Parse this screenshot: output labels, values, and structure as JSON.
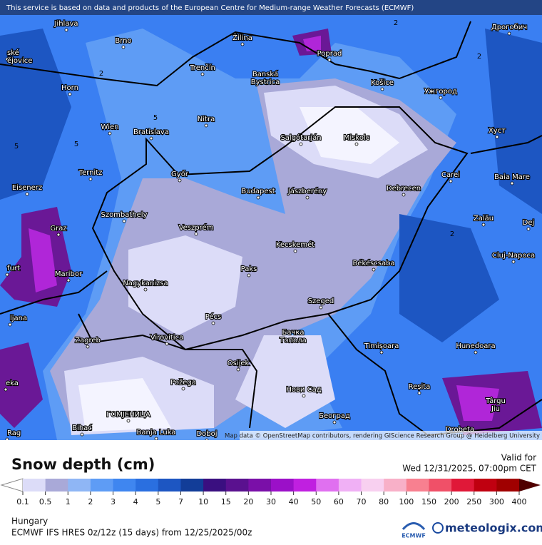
{
  "header": {
    "attribution": "This service is based on data and products of the European Centre for Medium-range Weather Forecasts (ECMWF)"
  },
  "map": {
    "credit": "Map data © OpenStreetMap contributors, rendering GIScience Research Group @ Heidelberg University",
    "places": [
      "Jihlava",
      "Brno",
      "Žilina",
      "Poprad",
      "Дрогобич",
      "Trenčín",
      "Banská\nBystrica",
      "Košice",
      "Ужгород",
      "Horn",
      "Nitra",
      "Хуст",
      "Wien",
      "Bratislava",
      "Salgótarján",
      "Miskolc",
      "Baia Mare",
      "Ternitz",
      "Győr",
      "Carei",
      "Eisenerz",
      "Budapest",
      "Jászberény",
      "Debrecen",
      "Zalău",
      "Szombathely",
      "Veszprém",
      "Dej",
      "Graz",
      "Cluj-Napoca",
      "Kecskemét",
      "Békéscsaba",
      "Paks",
      "Maribor",
      "Nagykanizsa",
      "Szeged",
      "Pécs",
      "Zagreb",
      "Virovitica",
      "Бачка\nТопола",
      "Timișoara",
      "Hunedoara",
      "Osijek",
      "Požega",
      "Reșita",
      "Нови Сад",
      "Târgu\nJiu",
      "ГОМЈЕНИЦА",
      "Београд",
      "Bihać",
      "Banja Luka",
      "Doboj",
      "Drobeta",
      "ské\nějovice",
      "furt",
      "ljana",
      "eka",
      "Rag"
    ],
    "contour_labels": [
      "2",
      "2",
      "2",
      "2",
      "5",
      "5",
      "5"
    ]
  },
  "legend": {
    "title": "Snow depth (cm)",
    "valid_label": "Valid for",
    "valid_time": "Wed 12/31/2025, 07:00pm CET",
    "ticks": [
      "0.1",
      "0.5",
      "1",
      "2",
      "3",
      "4",
      "5",
      "7",
      "10",
      "15",
      "20",
      "30",
      "40",
      "50",
      "60",
      "70",
      "80",
      "100",
      "150",
      "200",
      "250",
      "300",
      "400"
    ],
    "colors": [
      "#dcdcf8",
      "#a9a9d8",
      "#8fb6f5",
      "#5e9cf5",
      "#3f86f0",
      "#2a6fe0",
      "#1d56c2",
      "#123d98",
      "#3a0f80",
      "#5a118f",
      "#7a0fa8",
      "#9b10c8",
      "#c020e0",
      "#e070f0",
      "#f0b0f5",
      "#f8d0f0",
      "#f8b0c8",
      "#f88090",
      "#f05068",
      "#e01838",
      "#c00010",
      "#a00000"
    ],
    "over_color": "#500000"
  },
  "footer": {
    "region": "Hungary",
    "model": "ECMWF IFS HRES 0z/12z (15 days) from 12/25/2025/00z",
    "ecmwf": "ECMWF",
    "brand": "meteologix.com"
  }
}
